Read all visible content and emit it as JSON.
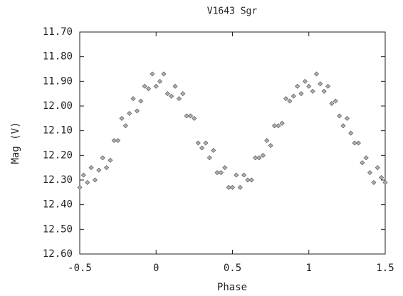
{
  "chart_data": {
    "type": "scatter",
    "title": "V1643 Sgr",
    "xlabel": "Phase",
    "ylabel": "Mag (V)",
    "x": [
      -0.5,
      -0.475,
      -0.45,
      -0.425,
      -0.4,
      -0.375,
      -0.35,
      -0.325,
      -0.3,
      -0.275,
      -0.25,
      -0.225,
      -0.2,
      -0.175,
      -0.15,
      -0.125,
      -0.1,
      -0.075,
      -0.05,
      -0.025,
      0,
      0.025,
      0.05,
      0.075,
      0.1,
      0.125,
      0.15,
      0.175,
      0.2,
      0.225,
      0.25,
      0.275,
      0.3,
      0.325,
      0.35,
      0.375,
      0.4,
      0.425,
      0.45,
      0.475,
      0.5,
      0.525,
      0.55,
      0.575,
      0.6,
      0.625,
      0.65,
      0.675,
      0.7,
      0.725,
      0.75,
      0.775,
      0.8,
      0.825,
      0.85,
      0.875,
      0.9,
      0.925,
      0.95,
      0.975,
      1,
      1.025,
      1.05,
      1.075,
      1.1,
      1.125,
      1.15,
      1.175,
      1.2,
      1.225,
      1.25,
      1.275,
      1.3,
      1.325,
      1.35,
      1.375,
      1.4,
      1.425,
      1.45,
      1.475,
      1.5
    ],
    "values": [
      12.33,
      12.28,
      12.31,
      12.25,
      12.3,
      12.26,
      12.21,
      12.25,
      12.22,
      12.14,
      12.14,
      12.05,
      12.08,
      12.03,
      11.97,
      12.02,
      11.98,
      11.92,
      11.93,
      11.87,
      11.92,
      11.9,
      11.87,
      11.95,
      11.96,
      11.92,
      11.97,
      11.95,
      12.04,
      12.04,
      12.05,
      12.15,
      12.17,
      12.15,
      12.21,
      12.18,
      12.27,
      12.27,
      12.25,
      12.33,
      12.33,
      12.28,
      12.33,
      12.28,
      12.3,
      12.3,
      12.21,
      12.21,
      12.2,
      12.14,
      12.16,
      12.08,
      12.08,
      12.07,
      11.97,
      11.98,
      11.96,
      11.92,
      11.95,
      11.9,
      11.92,
      11.94,
      11.87,
      11.91,
      11.94,
      11.92,
      11.99,
      11.98,
      12.04,
      12.08,
      12.05,
      12.11,
      12.15,
      12.15,
      12.23,
      12.21,
      12.27,
      12.31,
      12.25,
      12.29,
      12.31
    ],
    "color": "#b0b0b0",
    "xlim": [
      -0.5,
      1.5
    ],
    "xticks": [
      -0.5,
      0,
      0.5,
      1,
      1.5
    ],
    "ylim": [
      12.6,
      11.7
    ],
    "yticks": [
      {
        "value": 11.7,
        "label": "11.70"
      },
      {
        "value": 11.8,
        "label": "11.80"
      },
      {
        "value": 11.9,
        "label": "11.90"
      },
      {
        "value": 12.0,
        "label": "12.00"
      },
      {
        "value": 12.1,
        "label": "12.10"
      },
      {
        "value": 12.2,
        "label": "12.20"
      },
      {
        "value": 12.3,
        "label": "12.30"
      },
      {
        "value": 12.4,
        "label": "12.40"
      },
      {
        "value": 12.5,
        "label": "12.50"
      },
      {
        "value": 12.6,
        "label": "12.60"
      }
    ]
  }
}
